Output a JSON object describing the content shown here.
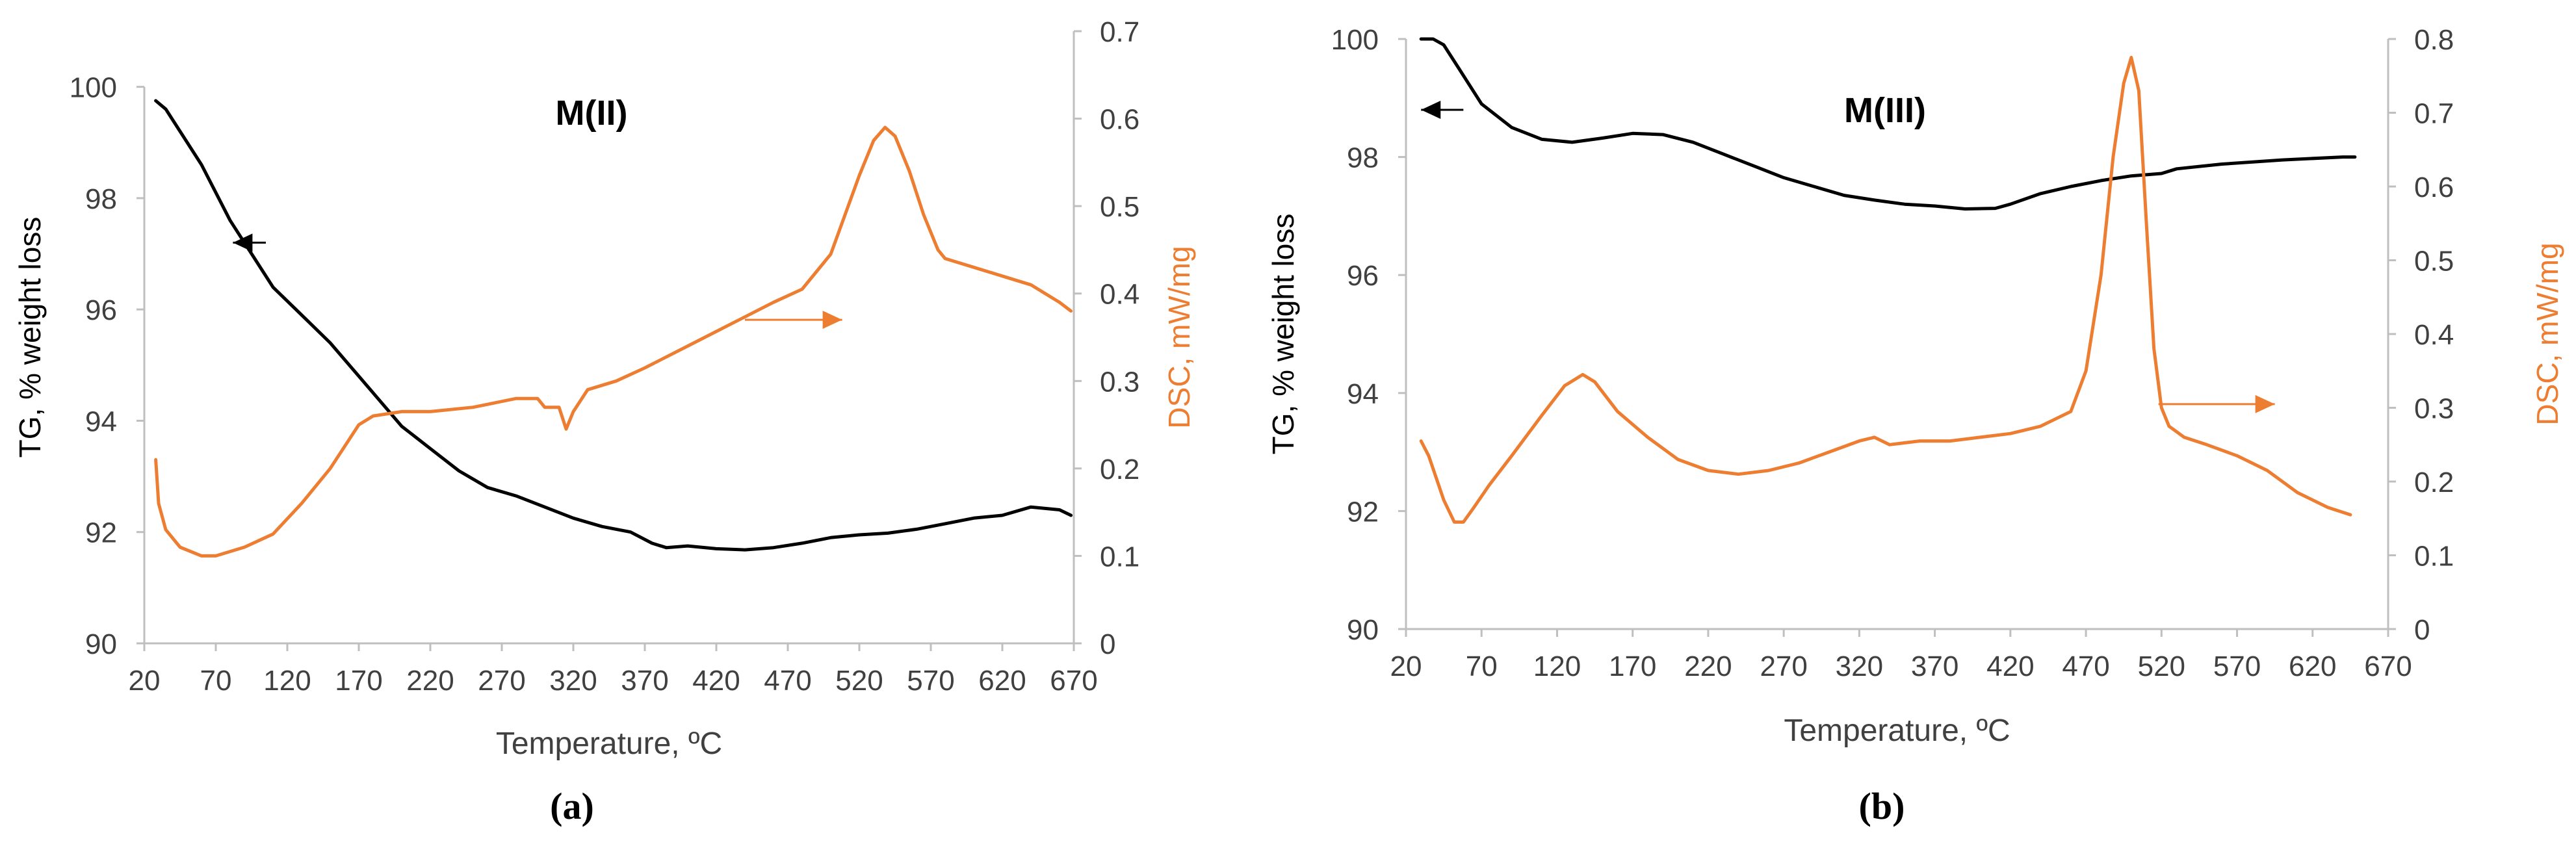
{
  "colors": {
    "tg": "#000000",
    "dsc": "#ED7D31",
    "axis": "#BFBFBF",
    "text": "#404040"
  },
  "chart_data": [
    {
      "type": "line",
      "panel_label": "(a)",
      "title": "M(II)",
      "xlabel": "Temperature, ºC",
      "ylabel_left": "TG, % weight loss",
      "ylabel_right": "DSC, mW/mg",
      "xlim": [
        20,
        670
      ],
      "xticks": [
        20,
        70,
        120,
        170,
        220,
        270,
        320,
        370,
        420,
        470,
        520,
        570,
        620,
        670
      ],
      "ylim_left": [
        90,
        101
      ],
      "yticks_left": [
        90,
        92,
        94,
        96,
        98,
        100
      ],
      "ylim_right": [
        0,
        0.7
      ],
      "yticks_right": [
        0,
        0.1,
        0.2,
        0.3,
        0.4,
        0.5,
        0.6,
        0.7
      ],
      "ytick_labels_right": [
        "0",
        "0.1",
        "0.2",
        "0.3",
        "0.4",
        "0.5",
        "0.6",
        "0.7"
      ],
      "grid": false,
      "series": [
        {
          "name": "TG",
          "axis": "left",
          "x": [
            28,
            35,
            45,
            60,
            80,
            95,
            110,
            130,
            150,
            170,
            190,
            200,
            210,
            220,
            240,
            260,
            280,
            300,
            320,
            340,
            360,
            375,
            385,
            400,
            420,
            440,
            460,
            480,
            500,
            520,
            540,
            560,
            580,
            600,
            620,
            640,
            660,
            668
          ],
          "y": [
            99.75,
            99.6,
            99.2,
            98.6,
            97.6,
            97.0,
            96.4,
            95.9,
            95.4,
            94.8,
            94.2,
            93.9,
            93.7,
            93.5,
            93.1,
            92.8,
            92.65,
            92.45,
            92.25,
            92.1,
            92.0,
            91.8,
            91.72,
            91.75,
            91.7,
            91.68,
            91.72,
            91.8,
            91.9,
            91.95,
            91.98,
            92.05,
            92.15,
            92.25,
            92.3,
            92.45,
            92.4,
            92.3
          ]
        },
        {
          "name": "DSC",
          "axis": "right",
          "x": [
            28,
            30,
            35,
            45,
            60,
            70,
            90,
            110,
            130,
            150,
            170,
            180,
            200,
            220,
            250,
            280,
            295,
            300,
            310,
            315,
            320,
            330,
            350,
            370,
            400,
            430,
            460,
            480,
            500,
            510,
            520,
            530,
            538,
            545,
            555,
            565,
            575,
            580,
            600,
            620,
            640,
            660,
            668
          ],
          "y": [
            0.21,
            0.16,
            0.13,
            0.11,
            0.1,
            0.1,
            0.11,
            0.125,
            0.16,
            0.2,
            0.25,
            0.26,
            0.265,
            0.265,
            0.27,
            0.28,
            0.28,
            0.27,
            0.27,
            0.245,
            0.265,
            0.29,
            0.3,
            0.315,
            0.34,
            0.365,
            0.39,
            0.405,
            0.445,
            0.49,
            0.535,
            0.575,
            0.59,
            0.58,
            0.54,
            0.49,
            0.45,
            0.44,
            0.43,
            0.42,
            0.41,
            0.39,
            0.38
          ]
        }
      ],
      "annotations": [
        {
          "type": "arrow",
          "target": "left-axis",
          "direction": "left",
          "x_from": 105,
          "x_to": 82,
          "y": 97.2,
          "axis": "left"
        },
        {
          "type": "arrow",
          "target": "right-axis",
          "direction": "right",
          "x_from": 440,
          "x_to": 508,
          "y": 0.37,
          "axis": "right"
        }
      ]
    },
    {
      "type": "line",
      "panel_label": "(b)",
      "title": "M(III)",
      "xlabel": "Temperature, ºC",
      "ylabel_left": "TG, % weight loss",
      "ylabel_right": "DSC, mW/mg",
      "xlim": [
        20,
        670
      ],
      "xticks": [
        20,
        70,
        120,
        170,
        220,
        270,
        320,
        370,
        420,
        470,
        520,
        570,
        620,
        670
      ],
      "ylim_left": [
        90,
        100
      ],
      "yticks_left": [
        90,
        92,
        94,
        96,
        98,
        100
      ],
      "ylim_right": [
        0,
        0.8
      ],
      "yticks_right": [
        0,
        0.1,
        0.2,
        0.3,
        0.4,
        0.5,
        0.6,
        0.7,
        0.8
      ],
      "ytick_labels_right": [
        "0",
        "0.1",
        "0.2",
        "0.3",
        "0.4",
        "0.5",
        "0.6",
        "0.7",
        "0.8"
      ],
      "grid": false,
      "series": [
        {
          "name": "TG",
          "axis": "left",
          "x": [
            30,
            38,
            45,
            55,
            70,
            90,
            110,
            130,
            150,
            170,
            190,
            210,
            230,
            250,
            270,
            290,
            310,
            330,
            350,
            370,
            390,
            410,
            420,
            440,
            460,
            480,
            500,
            520,
            530,
            560,
            600,
            640,
            648
          ],
          "y": [
            100.0,
            100.0,
            99.9,
            99.5,
            98.9,
            98.5,
            98.3,
            98.25,
            98.32,
            98.4,
            98.38,
            98.25,
            98.05,
            97.85,
            97.65,
            97.5,
            97.35,
            97.27,
            97.2,
            97.17,
            97.12,
            97.13,
            97.2,
            97.38,
            97.5,
            97.6,
            97.68,
            97.72,
            97.8,
            97.88,
            97.95,
            98.0,
            98.0
          ]
        },
        {
          "name": "DSC",
          "axis": "right",
          "x": [
            30,
            35,
            40,
            45,
            52,
            58,
            65,
            75,
            90,
            110,
            125,
            137,
            145,
            160,
            180,
            200,
            220,
            240,
            260,
            280,
            300,
            320,
            330,
            340,
            360,
            380,
            400,
            420,
            440,
            460,
            470,
            480,
            488,
            495,
            500,
            505,
            510,
            515,
            520,
            525,
            535,
            550,
            570,
            590,
            610,
            630,
            645
          ],
          "y": [
            0.255,
            0.235,
            0.205,
            0.175,
            0.145,
            0.145,
            0.165,
            0.195,
            0.235,
            0.29,
            0.33,
            0.345,
            0.335,
            0.295,
            0.26,
            0.23,
            0.215,
            0.21,
            0.215,
            0.225,
            0.24,
            0.255,
            0.26,
            0.25,
            0.255,
            0.255,
            0.26,
            0.265,
            0.275,
            0.295,
            0.35,
            0.48,
            0.64,
            0.74,
            0.775,
            0.73,
            0.55,
            0.38,
            0.3,
            0.275,
            0.26,
            0.25,
            0.235,
            0.215,
            0.185,
            0.165,
            0.155
          ]
        }
      ],
      "annotations": [
        {
          "type": "arrow",
          "target": "left-axis",
          "direction": "left",
          "x_from": 58,
          "x_to": 30,
          "y": 98.8,
          "axis": "left"
        },
        {
          "type": "arrow",
          "target": "right-axis",
          "direction": "right",
          "x_from": 518,
          "x_to": 595,
          "y": 0.305,
          "axis": "right"
        }
      ]
    }
  ]
}
